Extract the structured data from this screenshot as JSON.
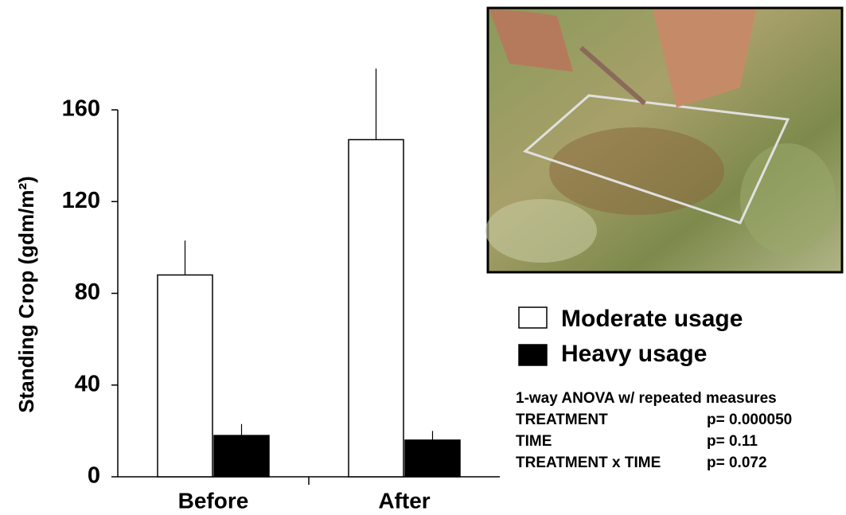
{
  "chart_data": {
    "type": "bar",
    "y_label": "Standing Crop (gdm/m²)",
    "categories": [
      "Before",
      "After"
    ],
    "series": [
      {
        "name": "Moderate usage",
        "color": "#ffffff",
        "values": [
          88,
          147
        ],
        "errors": [
          15,
          31
        ]
      },
      {
        "name": "Heavy usage",
        "color": "#000000",
        "values": [
          18,
          16
        ],
        "errors": [
          5,
          4
        ]
      }
    ],
    "ylim": [
      0,
      160
    ],
    "yticks": [
      0,
      40,
      80,
      120,
      160
    ],
    "annotation": {
      "title": "1-way ANOVA w/ repeated measures",
      "rows": [
        [
          "TREATMENT",
          "p= 0.000050"
        ],
        [
          "TIME",
          "p= 0.11"
        ],
        [
          "TREATMENT x TIME",
          "p= 0.072"
        ]
      ]
    }
  }
}
